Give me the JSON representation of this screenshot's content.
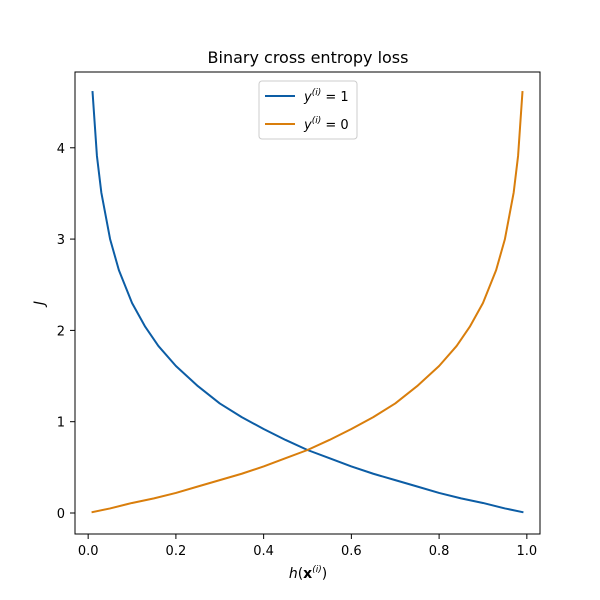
{
  "chart_data": {
    "type": "line",
    "title": "Binary cross entropy loss",
    "xlabel": "h(x⁽ⁱ⁾)",
    "ylabel": "J",
    "xlim": [
      -0.03,
      1.03
    ],
    "ylim": [
      -0.23,
      4.83
    ],
    "xticks": [
      "0.0",
      "0.2",
      "0.4",
      "0.6",
      "0.8",
      "1.0"
    ],
    "yticks": [
      "0",
      "1",
      "2",
      "3",
      "4"
    ],
    "grid": false,
    "legend_position": "top-center",
    "series": [
      {
        "name": "y⁽ⁱ⁾ = 1",
        "color": "#0c5da5",
        "x": [
          0.01,
          0.02,
          0.03,
          0.05,
          0.07,
          0.1,
          0.13,
          0.16,
          0.2,
          0.25,
          0.3,
          0.35,
          0.4,
          0.45,
          0.5,
          0.55,
          0.6,
          0.65,
          0.7,
          0.75,
          0.8,
          0.85,
          0.9,
          0.95,
          0.99
        ],
        "y": [
          4.61,
          3.91,
          3.51,
          3.0,
          2.66,
          2.3,
          2.04,
          1.83,
          1.61,
          1.39,
          1.2,
          1.05,
          0.92,
          0.8,
          0.69,
          0.6,
          0.51,
          0.43,
          0.36,
          0.29,
          0.22,
          0.16,
          0.11,
          0.05,
          0.01
        ]
      },
      {
        "name": "y⁽ⁱ⁾ = 0",
        "color": "#d97e0c",
        "x": [
          0.01,
          0.05,
          0.1,
          0.15,
          0.2,
          0.25,
          0.3,
          0.35,
          0.4,
          0.45,
          0.5,
          0.55,
          0.6,
          0.65,
          0.7,
          0.75,
          0.8,
          0.84,
          0.87,
          0.9,
          0.93,
          0.95,
          0.97,
          0.98,
          0.99
        ],
        "y": [
          0.01,
          0.05,
          0.11,
          0.16,
          0.22,
          0.29,
          0.36,
          0.43,
          0.51,
          0.6,
          0.69,
          0.8,
          0.92,
          1.05,
          1.2,
          1.39,
          1.61,
          1.83,
          2.04,
          2.3,
          2.66,
          3.0,
          3.51,
          3.91,
          4.61
        ]
      }
    ]
  }
}
